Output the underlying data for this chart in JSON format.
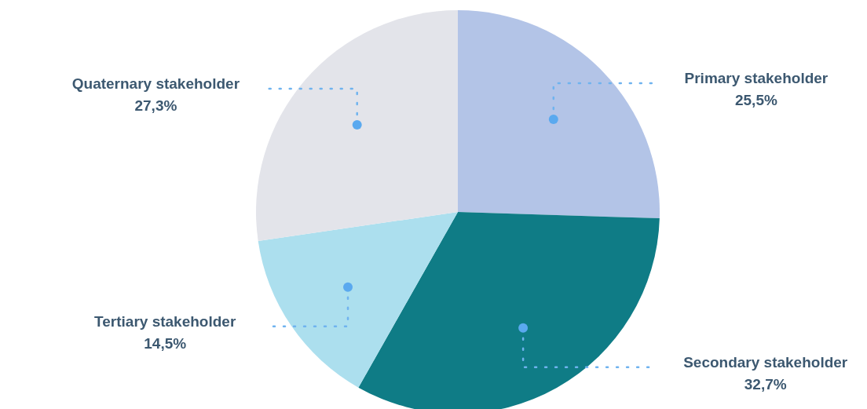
{
  "chart_data": {
    "type": "pie",
    "categories": [
      "Primary stakeholder",
      "Secondary stakeholder",
      "Tertiary stakeholder",
      "Quaternary stakeholder"
    ],
    "values": [
      25.5,
      32.7,
      14.5,
      27.3
    ],
    "colors": [
      "#b3c4e7",
      "#0f7c86",
      "#acdfee",
      "#e3e4ea"
    ],
    "value_labels": [
      "25,5%",
      "32,7%",
      "14,5%",
      "27,3%"
    ]
  }
}
